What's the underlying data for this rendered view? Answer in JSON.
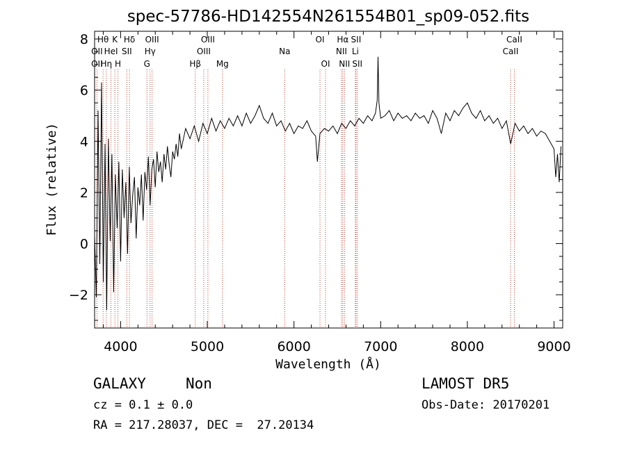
{
  "chart_data": {
    "type": "line",
    "title": "spec-57786-HD142554N261554B01_sp09-052.fits",
    "xlabel": "Wavelength (Å)",
    "ylabel": "Flux (relative)",
    "xlim": [
      3700,
      9100
    ],
    "ylim": [
      -3.3,
      8.3
    ],
    "xticks": [
      4000,
      5000,
      6000,
      7000,
      8000,
      9000
    ],
    "yticks": [
      -2,
      0,
      2,
      4,
      6,
      8
    ],
    "line_color": "#000000",
    "marker_color": "#c0392b",
    "series": [
      {
        "x": [
          3700,
          3720,
          3740,
          3760,
          3780,
          3800,
          3820,
          3840,
          3860,
          3880,
          3900,
          3920,
          3940,
          3960,
          3980,
          4000,
          4020,
          4040,
          4060,
          4080,
          4100,
          4120,
          4140,
          4160,
          4180,
          4200,
          4220,
          4240,
          4260,
          4280,
          4300,
          4320,
          4340,
          4360,
          4380,
          4400,
          4420,
          4440,
          4460,
          4480,
          4500,
          4520,
          4540,
          4560,
          4580,
          4600,
          4620,
          4640,
          4660,
          4680,
          4700,
          4750,
          4800,
          4850,
          4900,
          4950,
          5000,
          5050,
          5100,
          5150,
          5200,
          5250,
          5300,
          5350,
          5400,
          5450,
          5500,
          5550,
          5600,
          5650,
          5700,
          5750,
          5800,
          5850,
          5900,
          5950,
          6000,
          6050,
          6100,
          6150,
          6200,
          6250,
          6270,
          6300,
          6350,
          6400,
          6450,
          6500,
          6550,
          6600,
          6650,
          6700,
          6750,
          6800,
          6850,
          6900,
          6940,
          6960,
          6970,
          6980,
          7000,
          7050,
          7100,
          7150,
          7200,
          7250,
          7300,
          7350,
          7400,
          7450,
          7500,
          7550,
          7600,
          7650,
          7700,
          7750,
          7800,
          7850,
          7900,
          7950,
          8000,
          8050,
          8100,
          8150,
          8200,
          8250,
          8300,
          8350,
          8400,
          8450,
          8500,
          8550,
          8600,
          8650,
          8700,
          8750,
          8800,
          8850,
          8900,
          8950,
          9000,
          9020,
          9040,
          9060,
          9080
        ],
        "y": [
          0.3,
          -2.1,
          5.2,
          -0.8,
          6.3,
          -1.5,
          3.9,
          -2.6,
          4.1,
          0.1,
          3.5,
          -1.9,
          2.7,
          0.6,
          3.2,
          -0.7,
          2.9,
          1.0,
          2.4,
          -0.4,
          3.0,
          0.8,
          1.9,
          2.6,
          0.2,
          2.2,
          1.5,
          2.7,
          0.9,
          2.8,
          2.1,
          3.4,
          1.5,
          2.9,
          3.3,
          2.2,
          3.6,
          2.8,
          3.2,
          2.4,
          3.5,
          2.9,
          3.8,
          3.1,
          2.6,
          3.6,
          3.3,
          3.9,
          3.4,
          4.3,
          3.7,
          4.5,
          4.1,
          4.6,
          4.0,
          4.7,
          4.3,
          4.9,
          4.4,
          4.8,
          4.5,
          4.9,
          4.6,
          5.0,
          4.6,
          5.1,
          4.7,
          5.0,
          5.4,
          4.9,
          4.7,
          5.1,
          4.6,
          4.8,
          4.4,
          4.7,
          4.3,
          4.6,
          4.5,
          4.8,
          4.4,
          4.2,
          3.2,
          4.3,
          4.5,
          4.4,
          4.6,
          4.3,
          4.7,
          4.5,
          4.8,
          4.6,
          4.9,
          4.7,
          5.0,
          4.8,
          5.1,
          5.6,
          7.3,
          5.5,
          4.9,
          5.0,
          5.2,
          4.8,
          5.1,
          4.9,
          5.0,
          4.8,
          5.1,
          4.9,
          5.0,
          4.7,
          5.2,
          4.9,
          4.3,
          5.1,
          4.8,
          5.2,
          5.0,
          5.3,
          5.5,
          5.1,
          4.9,
          5.2,
          4.8,
          5.0,
          4.7,
          4.9,
          4.5,
          4.8,
          3.9,
          4.7,
          4.4,
          4.6,
          4.3,
          4.5,
          4.2,
          4.4,
          4.3,
          4.0,
          3.7,
          2.6,
          3.5,
          2.4,
          3.8
        ]
      }
    ],
    "spectral_lines": [
      {
        "label": "Hθ",
        "x": 3798,
        "row": 1
      },
      {
        "label": "OII",
        "x": 3727,
        "row": 2
      },
      {
        "label": "OII",
        "x": 3727,
        "row": 3
      },
      {
        "label": "K",
        "x": 3934,
        "row": 1
      },
      {
        "label": "HeI",
        "x": 3889,
        "row": 2
      },
      {
        "label": "Hη",
        "x": 3835,
        "row": 3
      },
      {
        "label": "Hδ",
        "x": 4102,
        "row": 1
      },
      {
        "label": "SII",
        "x": 4072,
        "row": 2
      },
      {
        "label": "H",
        "x": 3969,
        "row": 3
      },
      {
        "label": "OIII",
        "x": 4363,
        "row": 1
      },
      {
        "label": "Hγ",
        "x": 4340,
        "row": 2
      },
      {
        "label": "G",
        "x": 4304,
        "row": 3
      },
      {
        "label": "OIII",
        "x": 5007,
        "row": 1
      },
      {
        "label": "OIII",
        "x": 4959,
        "row": 2
      },
      {
        "label": "Hβ",
        "x": 4861,
        "row": 3
      },
      {
        "label": "Mg",
        "x": 5175,
        "row": 3
      },
      {
        "label": "Na",
        "x": 5893,
        "row": 2
      },
      {
        "label": "OI",
        "x": 6300,
        "row": 1
      },
      {
        "label": "OI",
        "x": 6364,
        "row": 3
      },
      {
        "label": "Hα",
        "x": 6563,
        "row": 1
      },
      {
        "label": "SII",
        "x": 6716,
        "row": 1
      },
      {
        "label": "NII",
        "x": 6548,
        "row": 2
      },
      {
        "label": "Li",
        "x": 6708,
        "row": 2
      },
      {
        "label": "NII",
        "x": 6583,
        "row": 3
      },
      {
        "label": "SII",
        "x": 6731,
        "row": 3
      },
      {
        "label": "CaII",
        "x": 8542,
        "row": 1
      },
      {
        "label": "CaII",
        "x": 8498,
        "row": 2
      }
    ]
  },
  "info": {
    "class": "GALAXY",
    "subclass": "Non",
    "cz": "cz = 0.1 ± 0.0",
    "coords": "RA = 217.28037, DEC =  27.20134",
    "survey": "LAMOST DR5",
    "obsdate": "Obs-Date: 20170201"
  }
}
